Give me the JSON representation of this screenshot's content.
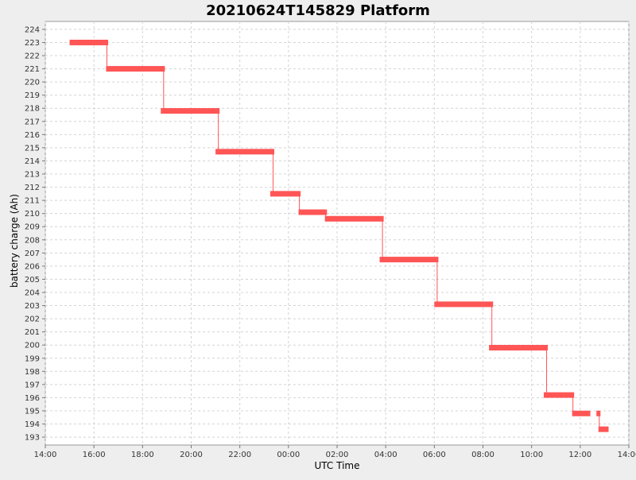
{
  "chart_data": {
    "type": "line",
    "title": "20210624T145829 Platform",
    "xlabel": "UTC Time",
    "ylabel": "battery charge (Ah)",
    "x_ticks": [
      "14:00",
      "16:00",
      "18:00",
      "20:00",
      "22:00",
      "00:00",
      "02:00",
      "04:00",
      "06:00",
      "08:00",
      "10:00",
      "12:00",
      "14:00"
    ],
    "x_range_hours": [
      14.0,
      38.0
    ],
    "ylim": [
      192.4,
      224.6
    ],
    "y_ticks": [
      193,
      194,
      195,
      196,
      197,
      198,
      199,
      200,
      201,
      202,
      203,
      204,
      205,
      206,
      207,
      208,
      209,
      210,
      211,
      212,
      213,
      214,
      215,
      216,
      217,
      218,
      219,
      220,
      221,
      222,
      223,
      224
    ],
    "grid": true,
    "series": [
      {
        "color": "#ff5555",
        "points": [
          {
            "x_start": "15:00",
            "x_end": "16:35",
            "y": 223.0
          },
          {
            "x_start": "16:30",
            "x_end": "18:55",
            "y": 221.0
          },
          {
            "x_start": "18:45",
            "x_end": "21:10",
            "y": 217.8
          },
          {
            "x_start": "21:00",
            "x_end": "23:25",
            "y": 214.7
          },
          {
            "x_start": "23:15",
            "x_end": "00:30",
            "y": 211.5
          },
          {
            "x_start": "00:25",
            "x_end": "01:35",
            "y": 210.1
          },
          {
            "x_start": "01:30",
            "x_end": "03:55",
            "y": 209.6
          },
          {
            "x_start": "03:45",
            "x_end": "06:10",
            "y": 206.5
          },
          {
            "x_start": "06:00",
            "x_end": "08:25",
            "y": 203.1
          },
          {
            "x_start": "08:15",
            "x_end": "10:40",
            "y": 199.8
          },
          {
            "x_start": "10:30",
            "x_end": "11:45",
            "y": 196.2
          },
          {
            "x_start": "11:40",
            "x_end": "12:25",
            "y": 194.8
          },
          {
            "x_start": "12:40",
            "x_end": "12:50",
            "y": 194.8
          },
          {
            "x_start": "12:45",
            "x_end": "13:10",
            "y": 193.6
          }
        ]
      }
    ]
  }
}
